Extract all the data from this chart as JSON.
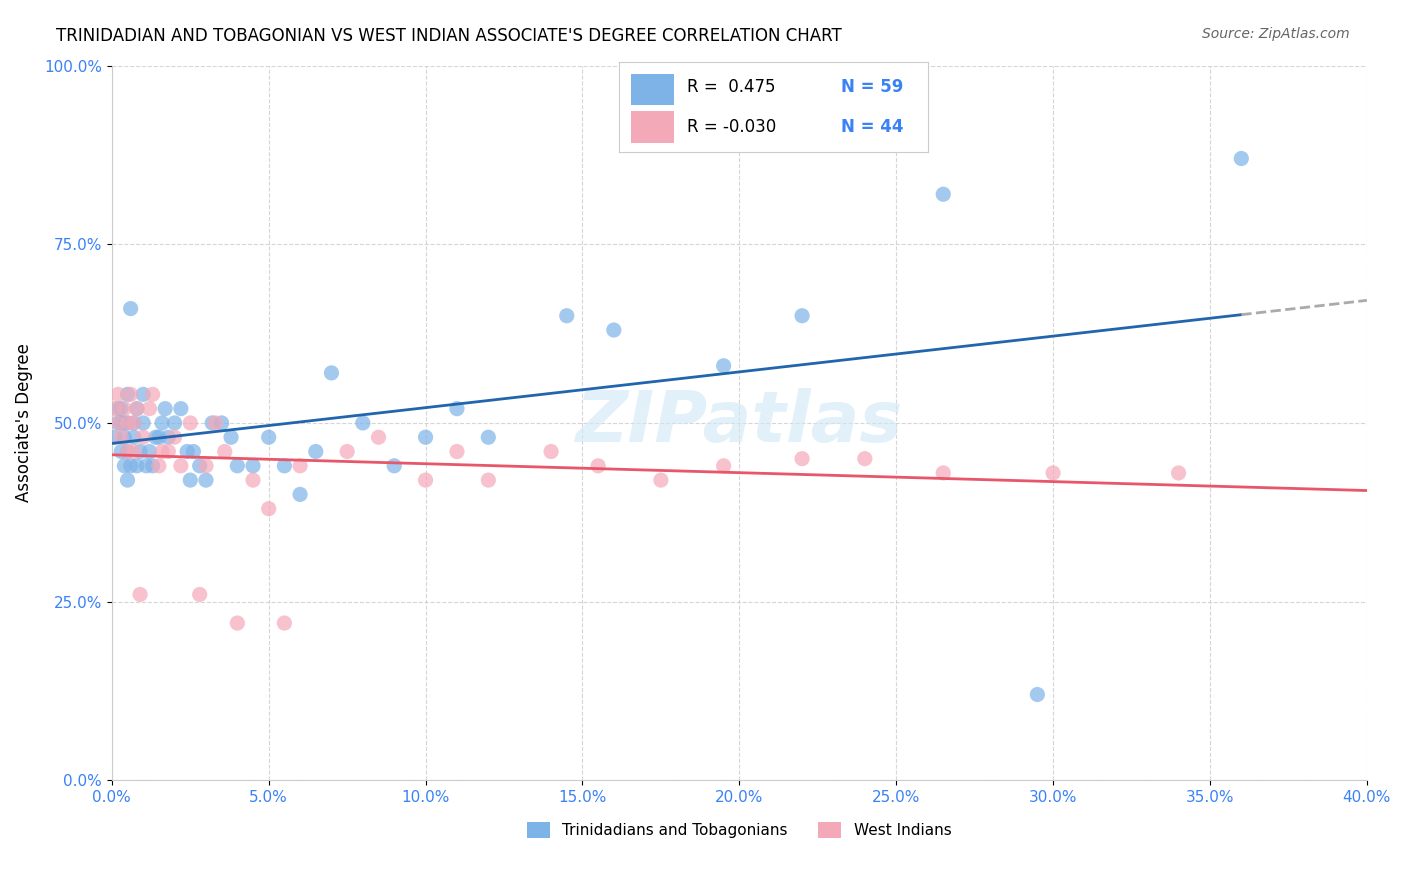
{
  "title": "TRINIDADIAN AND TOBAGONIAN VS WEST INDIAN ASSOCIATE'S DEGREE CORRELATION CHART",
  "source": "Source: ZipAtlas.com",
  "xlabel_bottom": "",
  "ylabel": "Associate's Degree",
  "watermark": "ZIPatlas",
  "legend_r1": "R =  0.475",
  "legend_n1": "N = 59",
  "legend_r2": "R = -0.030",
  "legend_n2": "N = 44",
  "series1_label": "Trinidadians and Tobagonians",
  "series2_label": "West Indians",
  "color_blue": "#7EB3E8",
  "color_pink": "#F4A9B8",
  "color_blue_line": "#2166AC",
  "color_pink_line": "#E8566A",
  "color_r_text": "#3B82F6",
  "xmin": 0.0,
  "xmax": 0.4,
  "ymin": 0.0,
  "ymax": 1.0,
  "xticks": [
    0.0,
    0.05,
    0.1,
    0.15,
    0.2,
    0.25,
    0.3,
    0.35,
    0.4
  ],
  "yticks": [
    0.0,
    0.25,
    0.5,
    0.75,
    1.0
  ],
  "blue_x": [
    0.001,
    0.002,
    0.002,
    0.003,
    0.003,
    0.003,
    0.004,
    0.004,
    0.004,
    0.005,
    0.005,
    0.005,
    0.005,
    0.006,
    0.006,
    0.007,
    0.007,
    0.008,
    0.008,
    0.009,
    0.01,
    0.01,
    0.011,
    0.012,
    0.013,
    0.014,
    0.015,
    0.016,
    0.017,
    0.018,
    0.02,
    0.022,
    0.024,
    0.025,
    0.026,
    0.028,
    0.03,
    0.032,
    0.035,
    0.038,
    0.04,
    0.045,
    0.05,
    0.055,
    0.06,
    0.065,
    0.07,
    0.08,
    0.09,
    0.1,
    0.11,
    0.12,
    0.145,
    0.16,
    0.195,
    0.22,
    0.265,
    0.295,
    0.36
  ],
  "blue_y": [
    0.48,
    0.52,
    0.5,
    0.46,
    0.5,
    0.52,
    0.44,
    0.48,
    0.5,
    0.5,
    0.42,
    0.46,
    0.54,
    0.44,
    0.66,
    0.48,
    0.5,
    0.44,
    0.52,
    0.46,
    0.5,
    0.54,
    0.44,
    0.46,
    0.44,
    0.48,
    0.48,
    0.5,
    0.52,
    0.48,
    0.5,
    0.52,
    0.46,
    0.42,
    0.46,
    0.44,
    0.42,
    0.5,
    0.5,
    0.48,
    0.44,
    0.44,
    0.48,
    0.44,
    0.4,
    0.46,
    0.57,
    0.5,
    0.44,
    0.48,
    0.52,
    0.48,
    0.65,
    0.63,
    0.58,
    0.65,
    0.82,
    0.12,
    0.87
  ],
  "pink_x": [
    0.001,
    0.002,
    0.002,
    0.003,
    0.004,
    0.005,
    0.005,
    0.006,
    0.007,
    0.007,
    0.008,
    0.009,
    0.01,
    0.012,
    0.013,
    0.015,
    0.016,
    0.018,
    0.02,
    0.022,
    0.025,
    0.028,
    0.03,
    0.033,
    0.036,
    0.04,
    0.045,
    0.05,
    0.055,
    0.06,
    0.075,
    0.085,
    0.1,
    0.11,
    0.12,
    0.14,
    0.155,
    0.175,
    0.195,
    0.22,
    0.24,
    0.265,
    0.3,
    0.34
  ],
  "pink_y": [
    0.52,
    0.54,
    0.5,
    0.48,
    0.52,
    0.5,
    0.46,
    0.54,
    0.5,
    0.46,
    0.52,
    0.26,
    0.48,
    0.52,
    0.54,
    0.44,
    0.46,
    0.46,
    0.48,
    0.44,
    0.5,
    0.26,
    0.44,
    0.5,
    0.46,
    0.22,
    0.42,
    0.38,
    0.22,
    0.44,
    0.46,
    0.48,
    0.42,
    0.46,
    0.42,
    0.46,
    0.44,
    0.42,
    0.44,
    0.45,
    0.45,
    0.43,
    0.43,
    0.43
  ]
}
